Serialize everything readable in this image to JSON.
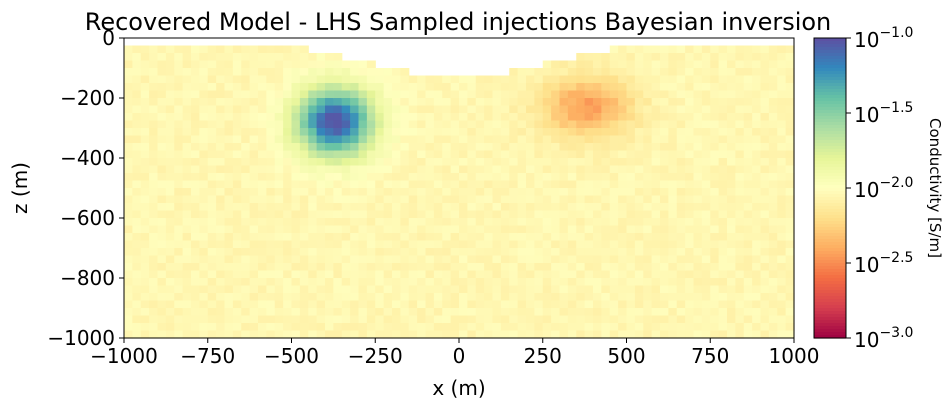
{
  "chart_data": {
    "type": "heatmap",
    "title": "Recovered Model - LHS Sampled injections Bayesian inversion",
    "xlabel": "x (m)",
    "ylabel": "z (m)",
    "xlim": [
      -1000,
      1000
    ],
    "ylim": [
      -1000,
      0
    ],
    "x_ticks": [
      -1000,
      -750,
      -500,
      -250,
      0,
      250,
      500,
      750,
      1000
    ],
    "x_tick_labels": [
      "−1000",
      "−750",
      "−500",
      "−250",
      "0",
      "250",
      "500",
      "750",
      "1000"
    ],
    "y_ticks": [
      0,
      -200,
      -400,
      -600,
      -800,
      -1000
    ],
    "y_tick_labels": [
      "0",
      "−200",
      "−400",
      "−600",
      "−800",
      "−1000"
    ],
    "colormap": "Spectral",
    "background_log10_conductivity": -2.05,
    "anomalies": [
      {
        "kind": "conductor",
        "center_x": -370,
        "center_z": -280,
        "radius_x": 130,
        "radius_z": 130,
        "log10_conductivity": -1.0
      },
      {
        "kind": "resistor",
        "center_x": 380,
        "center_z": -230,
        "radius_x": 150,
        "radius_z": 110,
        "log10_conductivity": -2.45
      }
    ],
    "colorbar": {
      "label": "Conductivity [S/m]",
      "scale": "log",
      "range_log10": [
        -3.0,
        -1.0
      ],
      "tick_values": [
        -1.0,
        -1.5,
        -2.0,
        -2.5,
        -3.0
      ],
      "tick_bases": [
        "10",
        "10",
        "10",
        "10",
        "10"
      ],
      "tick_exponents": [
        "−1.0",
        "−1.5",
        "−2.0",
        "−2.5",
        "−3.0"
      ]
    }
  }
}
